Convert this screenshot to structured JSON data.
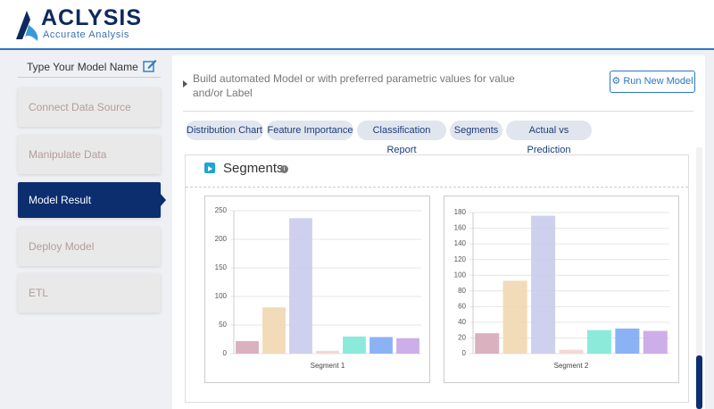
{
  "header": {
    "logo": "ACLYSIS",
    "tagline": "Accurate Analysis"
  },
  "sidebar": {
    "model_name": "Type Your Model Name",
    "items": [
      "Connect Data Source",
      "Manipulate Data",
      "Model Result",
      "Deploy Model",
      "ETL"
    ]
  },
  "main": {
    "description": [
      "Build automated Model or with preferred parametric values for value",
      "and/or Label"
    ],
    "button": "Run New Model",
    "tabs": [
      "Distribution Chart",
      "Feature Importance",
      "Classification Report",
      "Segments",
      "Actual vs Prediction"
    ],
    "section_title": "Segments"
  },
  "chart_data": [
    {
      "type": "bar",
      "categories": [
        null,
        null,
        null,
        null,
        null,
        null,
        null
      ],
      "values": [
        22,
        81,
        237,
        5,
        30,
        29,
        27
      ],
      "colors": [
        "#d6a9b8",
        "#f1d7b1",
        "#c9cbeb",
        "#f0d5d5",
        "#7fe8d7",
        "#7eaaf4",
        "#c6a5e6"
      ],
      "xlabel": "Segment 1",
      "ylim": [
        0,
        250
      ],
      "yticks": [
        0,
        50,
        100,
        150,
        200,
        250
      ],
      "grid": true
    },
    {
      "type": "bar",
      "categories": [
        null,
        null,
        null,
        null,
        null,
        null,
        null
      ],
      "values": [
        26,
        93,
        176,
        5,
        30,
        32,
        29
      ],
      "colors": [
        "#d6a9b8",
        "#f1d7b1",
        "#c9cbeb",
        "#f0d5d5",
        "#7fe8d7",
        "#7eaaf4",
        "#c6a5e6"
      ],
      "xlabel": "Segment 2",
      "ylim": [
        0,
        180
      ],
      "yticks": [
        0,
        20,
        40,
        60,
        80,
        100,
        120,
        140,
        160,
        180
      ],
      "grid": true
    }
  ]
}
